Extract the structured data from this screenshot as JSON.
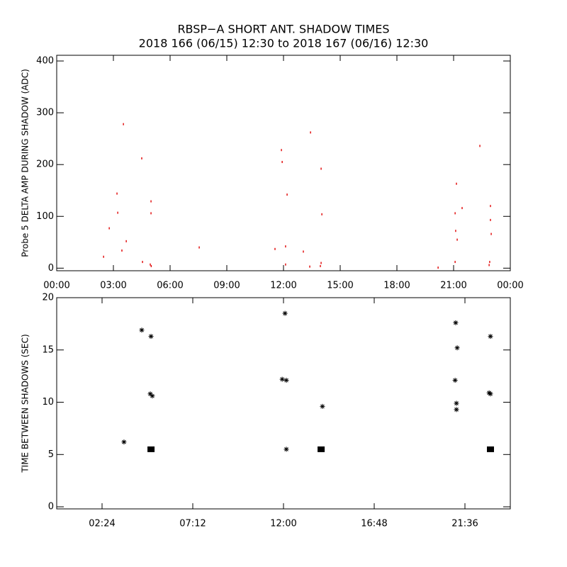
{
  "chart_data": [
    {
      "type": "scatter",
      "title": "RBSP−A SHORT ANT. SHADOW TIMES",
      "subtitle": "2018 166 (06/15) 12:30 to 2018 167 (06/16) 12:30",
      "y_label": "Probe 5 DELTA AMP DURING SHADOW (ADC)",
      "xlim": [
        0,
        24
      ],
      "ylim": [
        -5,
        411
      ],
      "xticks": [
        {
          "value": 0,
          "label": "00:00"
        },
        {
          "value": 3,
          "label": "03:00"
        },
        {
          "value": 6,
          "label": "06:00"
        },
        {
          "value": 9,
          "label": "09:00"
        },
        {
          "value": 12,
          "label": "12:00"
        },
        {
          "value": 15,
          "label": "15:00"
        },
        {
          "value": 18,
          "label": "18:00"
        },
        {
          "value": 21,
          "label": "21:00"
        },
        {
          "value": 24,
          "label": "00:00"
        }
      ],
      "yticks": [
        0,
        100,
        200,
        300,
        400
      ],
      "series": [
        {
          "color": "#e00000",
          "marker": "dot",
          "x": [
            2.48,
            2.78,
            3.19,
            3.23,
            3.45,
            3.53,
            3.68,
            4.5,
            4.54,
            4.99,
            4.99,
            4.95,
            5.0,
            7.54,
            11.55,
            11.89,
            11.93,
            12.11,
            12.19,
            12.11,
            13.05,
            13.39,
            13.43,
            13.99,
            14.03,
            13.99,
            13.95,
            20.18,
            21.08,
            21.11,
            21.15,
            21.19,
            21.08,
            21.45,
            22.39,
            22.95,
            22.95,
            22.99,
            22.91,
            22.88
          ],
          "values": [
            22,
            77,
            144,
            107,
            34,
            278,
            52,
            212,
            12,
            129,
            106,
            7,
            4,
            40,
            37,
            228,
            205,
            42,
            142,
            7,
            32,
            3,
            262,
            192,
            104,
            10,
            4,
            1,
            106,
            72,
            163,
            55,
            12,
            116,
            236,
            120,
            93,
            66,
            12,
            6
          ]
        }
      ]
    },
    {
      "type": "scatter",
      "y_label": "TIME BETWEEN SHADOWS (SEC)",
      "xlim": [
        0,
        24
      ],
      "ylim": [
        -0.2,
        20
      ],
      "xticks": [
        {
          "value": 2.4,
          "label": "02:24"
        },
        {
          "value": 7.2,
          "label": "07:12"
        },
        {
          "value": 12,
          "label": "12:00"
        },
        {
          "value": 16.8,
          "label": "16:48"
        },
        {
          "value": 21.6,
          "label": "21:36"
        }
      ],
      "yticks": [
        0,
        5,
        10,
        15,
        20
      ],
      "series": [
        {
          "color": "#000000",
          "marker": "asterisk",
          "x": [
            3.56,
            4.5,
            4.99,
            4.95,
            5.06,
            12.08,
            11.93,
            12.15,
            12.15,
            14.06,
            21.11,
            21.19,
            21.08,
            21.15,
            21.15,
            22.95,
            22.88,
            22.95
          ],
          "values": [
            6.2,
            16.9,
            16.3,
            10.8,
            10.6,
            18.5,
            12.2,
            12.1,
            5.5,
            9.6,
            17.6,
            15.2,
            12.1,
            9.9,
            9.3,
            16.3,
            10.9,
            10.8
          ]
        },
        {
          "color": "#000000",
          "marker": "square",
          "x": [
            4.99,
            13.99,
            22.95
          ],
          "values": [
            5.5,
            5.5,
            5.5
          ]
        }
      ]
    }
  ]
}
